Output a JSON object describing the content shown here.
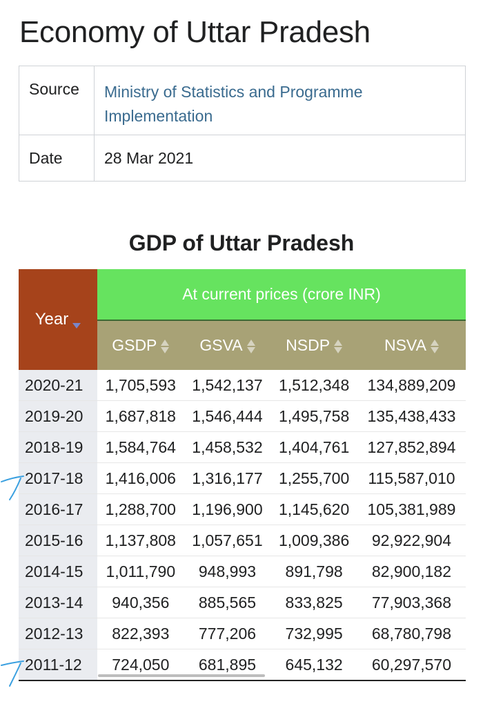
{
  "page": {
    "title": "Economy of Uttar Pradesh"
  },
  "infobox": {
    "source_label": "Source",
    "source_value": "Ministry of Statistics and Programme Implementation",
    "date_label": "Date",
    "date_value": "28 Mar 2021"
  },
  "table": {
    "caption": "GDP of Uttar Pradesh",
    "year_header": "Year",
    "group_header": "At current prices (crore INR)",
    "columns": [
      "GSDP",
      "GSVA",
      "NSDP",
      "NSVA"
    ],
    "rows": [
      {
        "year": "2020-21",
        "values": [
          "1,705,593",
          "1,542,137",
          "1,512,348",
          "134,889,209"
        ]
      },
      {
        "year": "2019-20",
        "values": [
          "1,687,818",
          "1,546,444",
          "1,495,758",
          "135,438,433"
        ]
      },
      {
        "year": "2018-19",
        "values": [
          "1,584,764",
          "1,458,532",
          "1,404,761",
          "127,852,894"
        ]
      },
      {
        "year": "2017-18",
        "values": [
          "1,416,006",
          "1,316,177",
          "1,255,700",
          "115,587,010"
        ]
      },
      {
        "year": "2016-17",
        "values": [
          "1,288,700",
          "1,196,900",
          "1,145,620",
          "105,381,989"
        ]
      },
      {
        "year": "2015-16",
        "values": [
          "1,137,808",
          "1,057,651",
          "1,009,386",
          "92,922,904"
        ]
      },
      {
        "year": "2014-15",
        "values": [
          "1,011,790",
          "948,993",
          "891,798",
          "82,900,182"
        ]
      },
      {
        "year": "2013-14",
        "values": [
          "940,356",
          "885,565",
          "833,825",
          "77,903,368"
        ]
      },
      {
        "year": "2012-13",
        "values": [
          "822,393",
          "777,206",
          "732,995",
          "68,780,798"
        ]
      },
      {
        "year": "2011-12",
        "values": [
          "724,050",
          "681,895",
          "645,132",
          "60,297,570"
        ]
      }
    ]
  },
  "colors": {
    "year_header_bg": "#a6431b",
    "group_header_bg": "#66e35f",
    "column_header_bg": "#a8a276",
    "link": "#3a6b8f",
    "pen_annotation": "#3aa0e0"
  },
  "icons": {
    "year_sort": "sort-descending-icon",
    "column_sort": "sort-both-icon",
    "annotation": "hand-drawn-arrow-icon"
  }
}
